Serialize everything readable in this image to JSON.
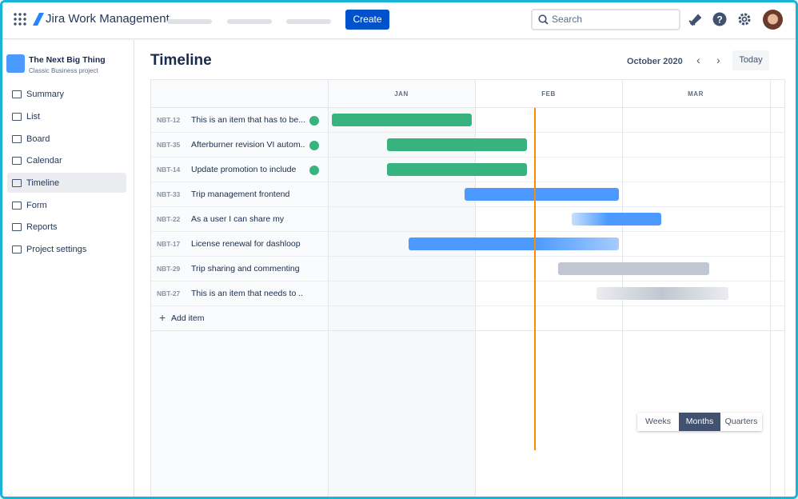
{
  "nav": {
    "product": "Jira Work Management",
    "create": "Create",
    "search": "Search"
  },
  "sidebar": {
    "project": {
      "name": "The Next Big Thing",
      "type": "Classic Business project"
    },
    "items": [
      "Summary",
      "List",
      "Board",
      "Calendar",
      "Timeline",
      "Form",
      "Reports",
      "Project settings"
    ],
    "selected": 4
  },
  "timeline": {
    "title": "Timeline",
    "period": "October 2020",
    "today": "Today",
    "months": [
      "JAN",
      "FEB",
      "MAR"
    ],
    "rows": [
      {
        "key": "NBT-12",
        "summary": "This is an item that has to be...",
        "done": true
      },
      {
        "key": "NBT-35",
        "summary": "Afterburner revision VI autom..",
        "done": true
      },
      {
        "key": "NBT-14",
        "summary": "Update promotion to include",
        "done": true
      },
      {
        "key": "NBT-33",
        "summary": "Trip management frontend",
        "done": false
      },
      {
        "key": "NBT-22",
        "summary": "As a user I can share my",
        "done": false
      },
      {
        "key": "NBT-17",
        "summary": "License renewal for dashloop",
        "done": false
      },
      {
        "key": "NBT-29",
        "summary": "Trip sharing and commenting",
        "done": false
      },
      {
        "key": "NBT-27",
        "summary": "This is an item that needs to ..",
        "done": false
      }
    ],
    "add_item": "Add item",
    "views": [
      "Weeks",
      "Months",
      "Quarters"
    ],
    "selected_view": 1
  }
}
